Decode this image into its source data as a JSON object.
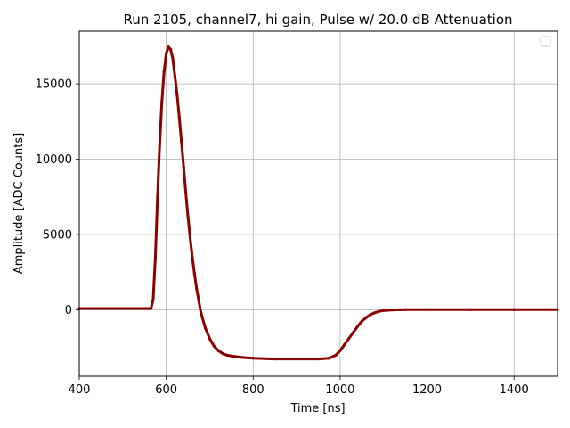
{
  "chart_data": {
    "type": "scatter",
    "title": "Run 2105, channel7, hi gain, Pulse w/ 20.0 dB Attenuation",
    "xlabel": "Time [ns]",
    "ylabel": "Amplitude [ADC Counts]",
    "xlim": [
      400,
      1500
    ],
    "ylim": [
      -4400,
      18500
    ],
    "xticks": [
      400,
      600,
      800,
      1000,
      1200,
      1400
    ],
    "yticks": [
      0,
      5000,
      10000,
      15000
    ],
    "grid": true,
    "legend": "top-right (empty)",
    "series": [
      {
        "color": "#8b0000",
        "points": [
          [
            400,
            100
          ],
          [
            450,
            100
          ],
          [
            500,
            100
          ],
          [
            540,
            100
          ],
          [
            565,
            100
          ],
          [
            570,
            700
          ],
          [
            575,
            3500
          ],
          [
            580,
            7500
          ],
          [
            585,
            11000
          ],
          [
            590,
            13800
          ],
          [
            595,
            15800
          ],
          [
            600,
            17000
          ],
          [
            605,
            17450
          ],
          [
            610,
            17300
          ],
          [
            615,
            16700
          ],
          [
            620,
            15500
          ],
          [
            625,
            14300
          ],
          [
            630,
            12800
          ],
          [
            635,
            11200
          ],
          [
            640,
            9500
          ],
          [
            645,
            7800
          ],
          [
            650,
            6200
          ],
          [
            655,
            4800
          ],
          [
            660,
            3500
          ],
          [
            665,
            2400
          ],
          [
            670,
            1400
          ],
          [
            680,
            -200
          ],
          [
            690,
            -1200
          ],
          [
            700,
            -1900
          ],
          [
            710,
            -2400
          ],
          [
            720,
            -2700
          ],
          [
            730,
            -2900
          ],
          [
            740,
            -3000
          ],
          [
            750,
            -3050
          ],
          [
            775,
            -3150
          ],
          [
            800,
            -3200
          ],
          [
            850,
            -3250
          ],
          [
            900,
            -3250
          ],
          [
            950,
            -3250
          ],
          [
            975,
            -3200
          ],
          [
            990,
            -3000
          ],
          [
            1000,
            -2700
          ],
          [
            1010,
            -2300
          ],
          [
            1020,
            -1900
          ],
          [
            1030,
            -1500
          ],
          [
            1040,
            -1100
          ],
          [
            1050,
            -750
          ],
          [
            1060,
            -500
          ],
          [
            1070,
            -300
          ],
          [
            1080,
            -180
          ],
          [
            1090,
            -90
          ],
          [
            1100,
            -40
          ],
          [
            1120,
            0
          ],
          [
            1150,
            20
          ],
          [
            1200,
            20
          ],
          [
            1300,
            20
          ],
          [
            1400,
            20
          ],
          [
            1500,
            20
          ]
        ]
      }
    ]
  }
}
